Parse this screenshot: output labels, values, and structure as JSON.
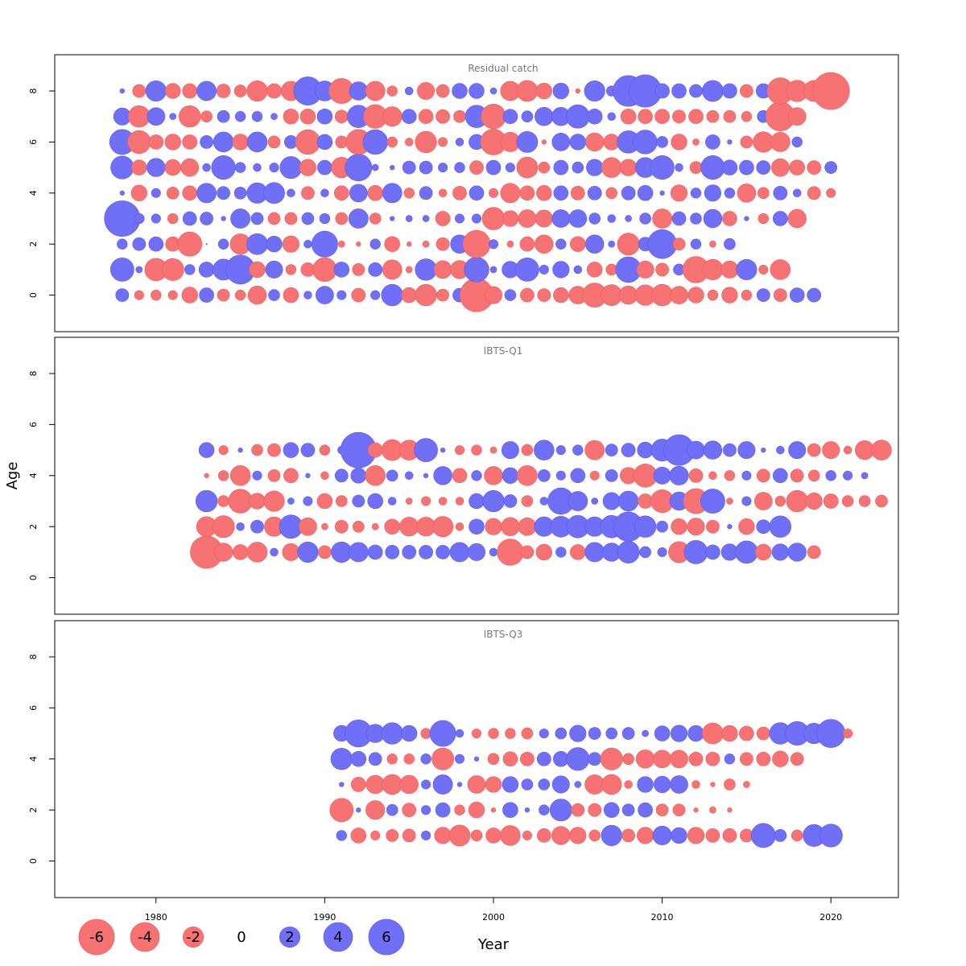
{
  "chart_data": {
    "type": "scatter",
    "subtype": "bubble",
    "xlabel": "Year",
    "ylabel": "Age",
    "x_ticks": [
      1980,
      1990,
      2000,
      2010,
      2020
    ],
    "y_ticks": [
      0,
      2,
      4,
      6,
      8
    ],
    "xlim": [
      1974,
      2024
    ],
    "ylim": [
      -1.5,
      9.3
    ],
    "colors": {
      "positive": "#6f6ff7",
      "negative": "#f77272"
    },
    "legend": {
      "position": "bottom-left",
      "entries": [
        {
          "label": "-6",
          "value": -6
        },
        {
          "label": "-4",
          "value": -4
        },
        {
          "label": "-2",
          "value": -2
        },
        {
          "label": "0",
          "value": 0
        },
        {
          "label": "2",
          "value": 2
        },
        {
          "label": "4",
          "value": 4
        },
        {
          "label": "6",
          "value": 6
        }
      ]
    },
    "panels": [
      {
        "title": "Residual catch",
        "start_year": 1978,
        "ages": [
          0,
          1,
          2,
          3,
          4,
          5,
          6,
          7,
          8
        ],
        "residuals": {
          "8": [
            0.1,
            -0.8,
            2.0,
            -1.1,
            -1.0,
            1.8,
            -0.9,
            -0.7,
            -2.0,
            -1.0,
            -1.8,
            3.8,
            1.9,
            -3.0,
            1.6,
            -1.8,
            -0.5,
            0.3,
            -1.4,
            -0.8,
            1.1,
            1.1,
            0.2,
            -1.8,
            -2.1,
            -1.2,
            1.2,
            -0.1,
            2.0,
            0.5,
            4.5,
            5.0,
            1.0,
            1.0,
            0.8,
            2.1,
            1.0,
            -0.8,
            1.0,
            -3.3,
            -2.2,
            -2.1,
            -6.5
          ],
          "7": [
            1.4,
            -2.2,
            1.5,
            0.2,
            -2.2,
            -0.6,
            0.7,
            0.5,
            0.5,
            0.2,
            -1.1,
            -1.1,
            1.1,
            -0.8,
            2.4,
            -2.7,
            -1.8,
            1.0,
            -1.0,
            -0.9,
            -0.7,
            2.4,
            -2.9,
            1.0,
            0.6,
            1.6,
            1.6,
            2.6,
            1.1,
            0.3,
            -1.1,
            -1.0,
            -1.0,
            -0.8,
            -1.0,
            -0.7,
            -0.7,
            -0.5,
            0.7,
            -4.0,
            -1.5
          ],
          "6": [
            3.0,
            -2.5,
            -1.0,
            -1.2,
            -1.0,
            0.8,
            1.9,
            -1.2,
            1.9,
            -0.7,
            0.8,
            -2.9,
            1.1,
            -0.7,
            -3.0,
            2.9,
            -0.5,
            -0.3,
            -2.2,
            -0.4,
            0.3,
            1.1,
            -3.2,
            -1.8,
            2.1,
            -0.1,
            1.5,
            1.2,
            -1.6,
            -1.2,
            2.4,
            2.7,
            0.6,
            -1.2,
            -0.2,
            1.0,
            0.1,
            -0.7,
            -2.0,
            -1.8,
            0.5
          ],
          "5": [
            2.5,
            -1.1,
            1.6,
            -1.2,
            -1.5,
            0.3,
            2.7,
            0.5,
            0.3,
            0.4,
            2.3,
            -1.3,
            1.0,
            -2.0,
            3.4,
            0.2,
            0.1,
            0.8,
            0.8,
            0.4,
            0.5,
            -0.9,
            1.0,
            0.4,
            -2.1,
            -0.6,
            1.0,
            0.6,
            1.3,
            -1.9,
            -1.3,
            1.9,
            2.7,
            0.3,
            -0.7,
            2.7,
            1.1,
            1.0,
            0.9,
            -1.5,
            -1.1,
            -0.9,
            0.7
          ],
          "4": [
            0.1,
            -1.2,
            0.4,
            -0.7,
            -1.0,
            1.8,
            0.8,
            0.7,
            2.0,
            2.1,
            0.3,
            -0.8,
            0.3,
            -1.0,
            1.5,
            -1.1,
            1.8,
            -0.5,
            0.8,
            -0.3,
            -0.9,
            1.0,
            -0.4,
            -1.8,
            -1.0,
            -1.1,
            1.0,
            -0.9,
            0.9,
            -0.6,
            0.9,
            1.1,
            0.1,
            -1.3,
            0.5,
            1.3,
            0.5,
            -1.6,
            -0.6,
            0.9,
            0.3,
            -0.8,
            -0.4
          ],
          "3": [
            6.0,
            0.5,
            0.4,
            -0.5,
            0.9,
            0.8,
            0.1,
            1.8,
            0.7,
            -0.7,
            -0.7,
            0.7,
            0.5,
            -0.7,
            1.8,
            -0.6,
            0.1,
            0.2,
            0.2,
            -1.0,
            0.4,
            0.4,
            -2.4,
            -1.2,
            -1.5,
            -1.4,
            1.5,
            1.5,
            0.6,
            0.3,
            0.2,
            0.6,
            -1.8,
            0.9,
            0.6,
            1.6,
            -1.0,
            0.1,
            -0.5,
            1.0,
            -1.6
          ],
          "2": [
            0.5,
            0.8,
            1.0,
            -1.0,
            -2.8,
            0.0,
            0.5,
            -2.0,
            2.1,
            1.2,
            -1.3,
            0.3,
            3.2,
            -0.2,
            -0.1,
            0.5,
            -1.1,
            -0.1,
            -0.2,
            -0.8,
            1.6,
            -3.6,
            0.4,
            -0.2,
            -1.0,
            -1.6,
            0.5,
            -1.1,
            1.6,
            0.2,
            -2.3,
            0.9,
            4.0,
            -0.7,
            0.5,
            -0.2,
            0.6
          ],
          "1": [
            2.6,
            0.2,
            -2.4,
            -2.3,
            0.5,
            1.1,
            2.1,
            4.0,
            -1.2,
            1.4,
            -0.5,
            -0.9,
            -2.7,
            1.1,
            -0.7,
            0.9,
            -1.8,
            -0.2,
            2.2,
            -1.5,
            -1.6,
            2.9,
            0.2,
            1.3,
            2.6,
            0.4,
            1.3,
            0.3,
            -1.1,
            -0.6,
            3.1,
            -1.4,
            -0.8,
            0.6,
            -3.3,
            -2.0,
            -1.4,
            2.0,
            -0.4,
            -1.9
          ],
          "0": [
            0.8,
            -0.4,
            -0.5,
            -0.4,
            -1.2,
            1.0,
            -0.7,
            -0.5,
            -1.6,
            0.6,
            -1.1,
            0.3,
            1.5,
            0.4,
            -0.9,
            0.4,
            2.2,
            -1.1,
            -2.2,
            -0.7,
            0.9,
            -5.3,
            -1.4,
            0.6,
            -0.9,
            -0.8,
            -1.1,
            -1.5,
            -2.8,
            -2.1,
            -1.6,
            -2.0,
            -2.2,
            -1.5,
            -1.2,
            -0.5,
            -1.2,
            -0.5,
            0.8,
            -0.8,
            1.0,
            0.9
          ]
        }
      },
      {
        "title": "IBTS-Q1",
        "start_year": 1983,
        "ages": [
          1,
          2,
          3,
          4,
          5
        ],
        "residuals": {
          "5": [
            1.1,
            -0.4,
            0.1,
            -0.6,
            -0.8,
            1.1,
            0.9,
            -0.5,
            0.3,
            6.0,
            -1.0,
            -2.1,
            -1.9,
            2.6,
            0.1,
            -0.4,
            -0.5,
            -0.2,
            1.4,
            -0.6,
            1.9,
            0.4,
            0.5,
            -1.8,
            0.7,
            0.9,
            1.2,
            2.3,
            4.5,
            1.5,
            1.6,
            0.8,
            1.4,
            0.1,
            0.3,
            1.4,
            -0.8,
            -1.4,
            -0.3,
            -1.7,
            -1.9
          ],
          "4": [
            -0.1,
            -0.5,
            -1.9,
            0.4,
            -0.7,
            -1.0,
            0.1,
            -0.3,
            0.8,
            1.1,
            -1.9,
            0.6,
            0.3,
            0.1,
            1.6,
            -1.0,
            0.5,
            -1.6,
            1.2,
            -1.9,
            0.7,
            0.4,
            1.0,
            -0.4,
            0.7,
            -1.3,
            -2.6,
            1.4,
            1.7,
            -0.9,
            -0.3,
            -0.5,
            0.4,
            -0.8,
            1.0,
            -0.8,
            -0.6,
            0.5,
            0.4,
            0.2
          ],
          "3": [
            2.2,
            -0.6,
            -2.7,
            -1.2,
            -2.0,
            0.2,
            0.4,
            -1.1,
            -0.6,
            0.7,
            1.1,
            0.3,
            -0.2,
            -0.4,
            -0.3,
            -0.3,
            1.1,
            2.2,
            0.8,
            -0.6,
            0.3,
            3.3,
            1.8,
            0.2,
            1.4,
            1.9,
            -1.0,
            -2.5,
            1.6,
            -3.0,
            2.8,
            -0.2,
            0.4,
            -1.5,
            -0.5,
            -2.2,
            -1.3,
            -1.0,
            -0.6,
            -0.6,
            -0.7
          ],
          "2": [
            -1.9,
            -2.3,
            0.3,
            0.8,
            -1.8,
            2.6,
            -1.5,
            -0.2,
            -0.8,
            -0.6,
            -0.2,
            -1.1,
            -1.7,
            -1.7,
            -2.0,
            -0.3,
            1.1,
            -1.3,
            -1.6,
            -1.5,
            1.8,
            2.1,
            2.4,
            1.8,
            2.4,
            4.1,
            2.2,
            0.6,
            -1.2,
            -1.4,
            -0.8,
            0.1,
            -1.2,
            0.9,
            2.2
          ],
          "1": [
            -5.0,
            -1.6,
            -1.1,
            -1.9,
            0.3,
            -1.4,
            2.0,
            -0.8,
            2.0,
            1.8,
            1.0,
            0.9,
            0.9,
            0.9,
            0.9,
            1.8,
            1.4,
            0.3,
            -3.3,
            -0.8,
            -1.2,
            0.5,
            -1.1,
            1.8,
            1.6,
            2.3,
            0.6,
            0.4,
            -2.1,
            2.6,
            1.0,
            1.3,
            2.4,
            -1.2,
            1.3,
            1.6,
            -0.8
          ]
        }
      },
      {
        "title": "IBTS-Q3",
        "start_year": 1991,
        "ages": [
          0,
          1,
          2,
          3,
          4,
          5
        ],
        "residuals": {
          "5": [
            1.2,
            3.5,
            1.6,
            2.2,
            1.2,
            -0.5,
            3.2,
            0.3,
            -0.4,
            -0.5,
            -0.5,
            -0.6,
            0.4,
            0.6,
            1.3,
            0.7,
            0.6,
            0.7,
            0.2,
            1.1,
            1.3,
            1.2,
            -2.1,
            -1.2,
            -1.0,
            -0.8,
            2.2,
            2.7,
            2.0,
            3.8,
            -0.4
          ],
          "4": [
            2.2,
            1.1,
            0.8,
            -0.5,
            -0.5,
            0.5,
            -2.3,
            0.4,
            0.1,
            -0.6,
            -1.0,
            -0.9,
            0.9,
            1.1,
            2.5,
            0.8,
            -2.3,
            -0.6,
            -1.6,
            -1.5,
            -1.5,
            -0.9,
            -0.9,
            0.5,
            -0.8,
            -0.9,
            -1.2,
            -0.8
          ],
          "3": [
            0.1,
            -1.0,
            -1.6,
            -1.9,
            -1.6,
            0.4,
            1.8,
            0.1,
            -1.5,
            -1.2,
            1.2,
            0.6,
            0.6,
            1.4,
            0.2,
            -1.8,
            -1.9,
            -0.3,
            1.2,
            1.3,
            1.5,
            -0.3,
            -0.1,
            -0.6,
            -0.2
          ],
          "2": [
            -2.6,
            0.1,
            -1.7,
            0.6,
            -0.9,
            0.4,
            1.0,
            -0.5,
            -1.2,
            -0.1,
            1.1,
            0.1,
            0.5,
            2.3,
            -0.8,
            -0.8,
            1.1,
            0.7,
            1.0,
            -0.7,
            -0.7,
            -0.1,
            -0.2,
            -0.1
          ],
          "1": [
            0.5,
            -1.1,
            -0.4,
            -0.7,
            -0.8,
            0.4,
            -1.3,
            -2.1,
            -0.6,
            -1.1,
            -1.9,
            -0.4,
            -0.9,
            -1.6,
            -1.3,
            -0.6,
            2.0,
            -0.8,
            -1.3,
            1.7,
            1.2,
            -1.3,
            -0.9,
            -0.9,
            -0.8,
            2.8,
            0.7,
            -0.6,
            2.3,
            2.5
          ]
        }
      }
    ]
  }
}
